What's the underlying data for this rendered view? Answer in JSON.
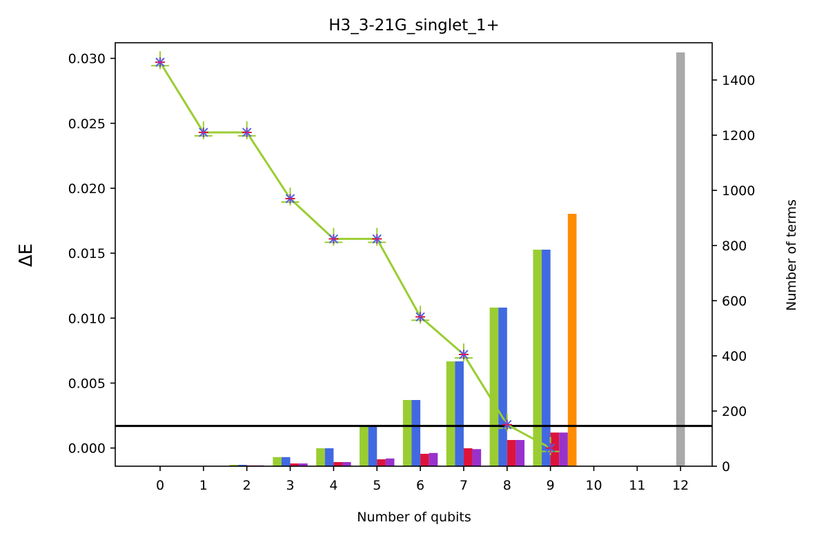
{
  "chart_data": {
    "type": "bar",
    "title": "H3_3-21G_singlet_1+",
    "xlabel": "Number of qubits",
    "ylabel_left": "ΔE",
    "ylabel_right": "Number of terms",
    "x_categories": [
      "0",
      "1",
      "2",
      "3",
      "4",
      "5",
      "6",
      "7",
      "8",
      "9",
      "10",
      "11",
      "12"
    ],
    "ylim_left": [
      -0.0014,
      0.0312
    ],
    "ylim_right": [
      0,
      1535
    ],
    "yticks_left": [
      "0.000",
      "0.005",
      "0.010",
      "0.015",
      "0.020",
      "0.025",
      "0.030"
    ],
    "yticks_right": [
      "0",
      "200",
      "400",
      "600",
      "800",
      "1000",
      "1200",
      "1400"
    ],
    "line_series": {
      "x": [
        0,
        1,
        2,
        3,
        4,
        5,
        6,
        7,
        8,
        9
      ],
      "y": [
        0.0297,
        0.0243,
        0.0243,
        0.0192,
        0.0161,
        0.0161,
        0.0101,
        0.0072,
        0.0018,
        0.0
      ],
      "color": "#9acd32"
    },
    "marker_overlay_colors": [
      "#4169e1",
      "#dc143c",
      "#9932cc"
    ],
    "bar_series": [
      {
        "color": "#9acd32",
        "offset": -1.5,
        "x": [
          2,
          3,
          4,
          5,
          6,
          7,
          8,
          9
        ],
        "values": [
          5,
          33,
          65,
          145,
          240,
          380,
          575,
          785
        ]
      },
      {
        "color": "#4169e1",
        "offset": -0.5,
        "x": [
          2,
          3,
          4,
          5,
          6,
          7,
          8,
          9
        ],
        "values": [
          5,
          33,
          65,
          145,
          240,
          380,
          575,
          785
        ]
      },
      {
        "color": "#dc143c",
        "offset": 0.5,
        "x": [
          2,
          3,
          4,
          5,
          6,
          7,
          8,
          9
        ],
        "values": [
          3,
          10,
          15,
          25,
          45,
          65,
          95,
          122
        ]
      },
      {
        "color": "#9932cc",
        "offset": 1.5,
        "x": [
          2,
          3,
          4,
          5,
          6,
          7,
          8,
          9
        ],
        "values": [
          3,
          10,
          15,
          28,
          48,
          62,
          95,
          122
        ]
      },
      {
        "color": "#ff8c00",
        "offset": 2.5,
        "x": [
          9
        ],
        "values": [
          915
        ]
      },
      {
        "color": "#a9a9a9",
        "offset": 0,
        "x": [
          12
        ],
        "values": [
          1500
        ]
      }
    ],
    "hline": {
      "y": 0.0017,
      "color": "#000000"
    },
    "grid": false
  }
}
